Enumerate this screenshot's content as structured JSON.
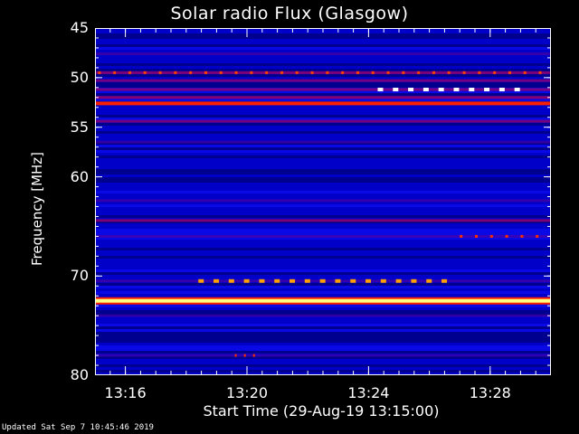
{
  "chart_data": {
    "type": "heatmap",
    "title": "Solar radio Flux (Glasgow)",
    "xlabel": "Start Time (29-Aug-19 13:15:00)",
    "ylabel": "Frequency [MHz]",
    "x_ticks": [
      "13:16",
      "13:20",
      "13:24",
      "13:28"
    ],
    "x_tick_minutes": [
      1,
      5,
      9,
      13
    ],
    "xlim_minutes": [
      0,
      15
    ],
    "y_ticks": [
      45,
      50,
      55,
      60,
      70,
      80
    ],
    "ylim": [
      45,
      80
    ],
    "footer": "Updated Sat Sep  7 10:45:46 2019",
    "colors": {
      "background": "#0000c8",
      "deep": "#000060",
      "band": "#a00060",
      "bright": "#ff2000",
      "hot": "#ffff80",
      "axis": "#ffffff"
    },
    "bands": [
      {
        "freq": 47.6,
        "intensity": 0.3
      },
      {
        "freq": 49.5,
        "intensity": 0.55
      },
      {
        "freq": 50.3,
        "intensity": 0.45
      },
      {
        "freq": 51.2,
        "intensity": 0.5
      },
      {
        "freq": 52.0,
        "intensity": 0.7
      },
      {
        "freq": 52.6,
        "intensity": 0.95
      },
      {
        "freq": 54.4,
        "intensity": 0.45
      },
      {
        "freq": 56.5,
        "intensity": 0.2
      },
      {
        "freq": 62.4,
        "intensity": 0.3
      },
      {
        "freq": 64.4,
        "intensity": 0.55
      },
      {
        "freq": 66.0,
        "intensity": 0.3
      },
      {
        "freq": 70.5,
        "intensity": 0.35
      },
      {
        "freq": 72.5,
        "intensity": 1.0
      },
      {
        "freq": 74.0,
        "intensity": 0.2
      },
      {
        "freq": 78.0,
        "intensity": 0.15
      }
    ]
  }
}
